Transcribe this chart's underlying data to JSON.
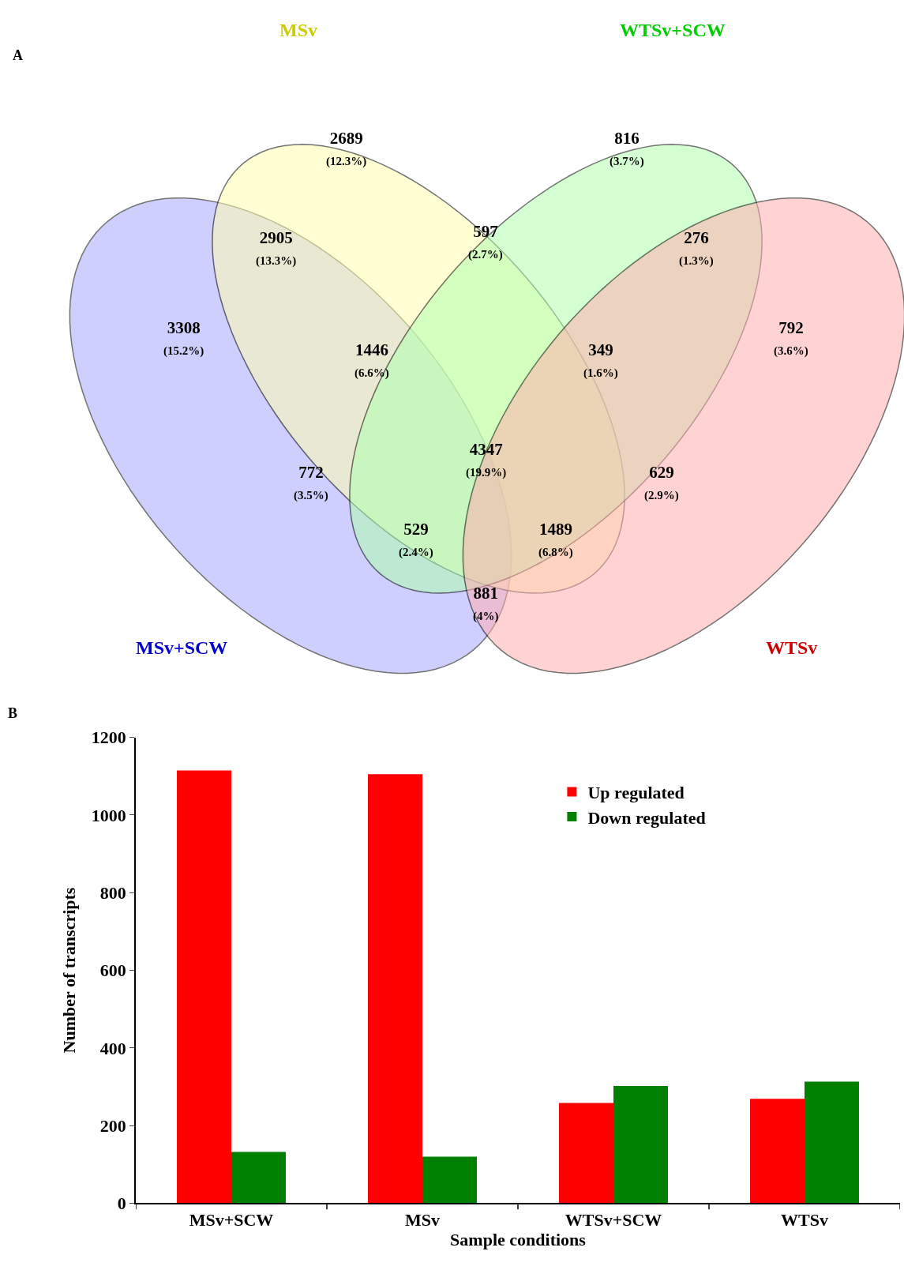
{
  "chart_data": [
    {
      "type": "other",
      "title": "A",
      "categories": [
        "MSv+SCW",
        "MSv",
        "WTSv+SCW",
        "WTSv"
      ],
      "colors": [
        "#a9a9ff",
        "#ffffb0",
        "#b0ffb0",
        "#ffb0b0"
      ],
      "annotations": [
        "2689\n(12.3%)",
        "816\n(3.7%)",
        "2905\n(13.3%)",
        "597\n(2.7%)",
        "276\n(1.3%)",
        "3308\n(15.2%)",
        "1446\n(6.6%)",
        "349\n(1.6%)",
        "792\n(3.6%)",
        "4347\n(19.9%)",
        "772\n(3.5%)",
        "629\n(2.9%)",
        "529\n(2.4%)",
        "1489\n(6.8%)",
        "881\n(4%)"
      ]
    },
    {
      "type": "bar",
      "title": "B",
      "xlabel": "Sample conditions",
      "ylabel": "Number of transcripts",
      "categories": [
        "MSv+SCW",
        "MSv",
        "WTSv+SCW",
        "WTSv"
      ],
      "series": [
        {
          "name": "Up regulated",
          "color": "#ff0000",
          "values": [
            1115,
            1105,
            258,
            269
          ]
        },
        {
          "name": "Down regulated",
          "color": "#008000",
          "values": [
            132,
            120,
            302,
            313
          ]
        }
      ],
      "ylim": [
        0,
        1200
      ],
      "yticks": [
        0,
        200,
        400,
        600,
        800,
        1000,
        1200
      ],
      "legend": "top right"
    }
  ]
}
